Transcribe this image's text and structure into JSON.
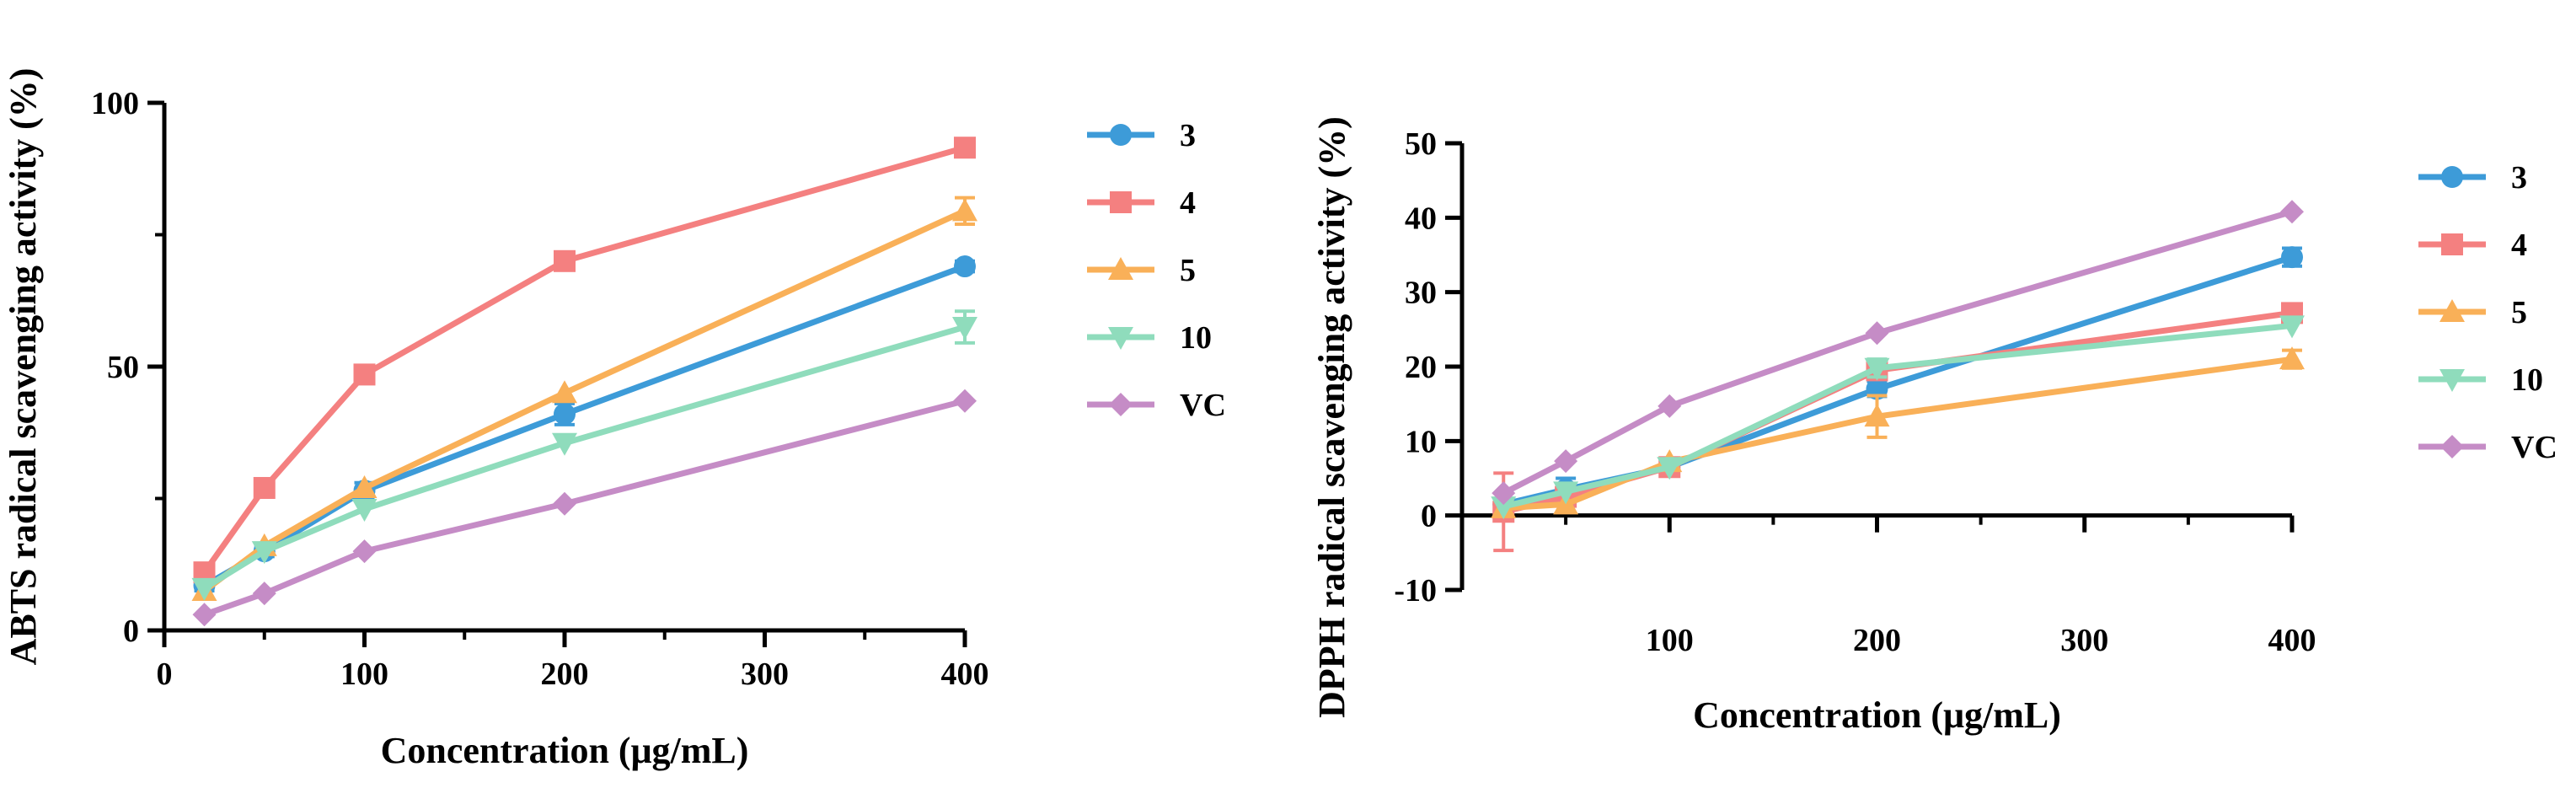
{
  "colors": {
    "3": "#3d9bd8",
    "4": "#f48080",
    "5": "#f9b058",
    "10": "#8fdcbc",
    "VC": "#c58cc6",
    "axis": "#000000"
  },
  "chart_data": [
    {
      "type": "line",
      "xlabel": "Concentration (μg/mL)",
      "ylabel": "ABTS radical scavenging activity (%)",
      "xlim": [
        0,
        400
      ],
      "ylim": [
        0,
        100
      ],
      "xticks": [
        "0",
        "100",
        "200",
        "300",
        "400"
      ],
      "yticks": [
        "0",
        "50",
        "100"
      ],
      "x": [
        20,
        50,
        100,
        200,
        400
      ],
      "grid": false,
      "legend_position": "right",
      "series": [
        {
          "name": "3",
          "marker": "circle",
          "color": "#3d9bd8",
          "values": [
            8.5,
            15,
            26.5,
            41,
            69
          ],
          "errors": [
            1,
            1,
            1.5,
            2,
            1
          ]
        },
        {
          "name": "4",
          "marker": "square",
          "color": "#f48080",
          "values": [
            11,
            27,
            48.5,
            70,
            91.5
          ],
          "errors": [
            0,
            0,
            0,
            0,
            0
          ]
        },
        {
          "name": "5",
          "marker": "triangle-up",
          "color": "#f9b058",
          "values": [
            7.5,
            16,
            27,
            45,
            79.5
          ],
          "errors": [
            0,
            0,
            0,
            0,
            2.5
          ]
        },
        {
          "name": "10",
          "marker": "triangle-down",
          "color": "#8fdcbc",
          "values": [
            8,
            15,
            23,
            35.5,
            57.5
          ],
          "errors": [
            0,
            0,
            0,
            0,
            3
          ]
        },
        {
          "name": "VC",
          "marker": "diamond",
          "color": "#c58cc6",
          "values": [
            3,
            7,
            15,
            24,
            43.5
          ],
          "errors": [
            0,
            0,
            0,
            0,
            0
          ]
        }
      ]
    },
    {
      "type": "line",
      "xlabel": "Concentration (μg/mL)",
      "ylabel": "DPPH radical scavenging activity (%)",
      "xlim": [
        0,
        400
      ],
      "ylim": [
        -10,
        50
      ],
      "xticks": [
        "100",
        "200",
        "300",
        "400"
      ],
      "yticks": [
        "-10",
        "0",
        "10",
        "20",
        "30",
        "40",
        "50"
      ],
      "x": [
        20,
        50,
        100,
        200,
        400
      ],
      "grid": false,
      "legend_position": "right",
      "series": [
        {
          "name": "3",
          "marker": "circle",
          "color": "#3d9bd8",
          "values": [
            1.5,
            3.5,
            6.5,
            17,
            34.7
          ],
          "errors": [
            0.5,
            1.5,
            0.5,
            1,
            1.2
          ]
        },
        {
          "name": "4",
          "marker": "square",
          "color": "#f48080",
          "values": [
            0.5,
            2.5,
            6.5,
            19.5,
            27.2
          ],
          "errors": [
            5.2,
            0.5,
            0.5,
            1,
            0.5
          ]
        },
        {
          "name": "5",
          "marker": "triangle-up",
          "color": "#f9b058",
          "values": [
            1,
            1.5,
            7.2,
            13.3,
            21
          ],
          "errors": [
            0.5,
            0.5,
            0.5,
            2.8,
            1.2
          ]
        },
        {
          "name": "10",
          "marker": "triangle-down",
          "color": "#8fdcbc",
          "values": [
            1.2,
            3.2,
            6.5,
            19.8,
            25.5
          ],
          "errors": [
            0.5,
            0.5,
            0.5,
            1.2,
            0.5
          ]
        },
        {
          "name": "VC",
          "marker": "diamond",
          "color": "#c58cc6",
          "values": [
            3,
            7.3,
            14.7,
            24.5,
            40.8
          ],
          "errors": [
            0,
            0,
            0,
            0,
            0
          ]
        }
      ]
    }
  ]
}
